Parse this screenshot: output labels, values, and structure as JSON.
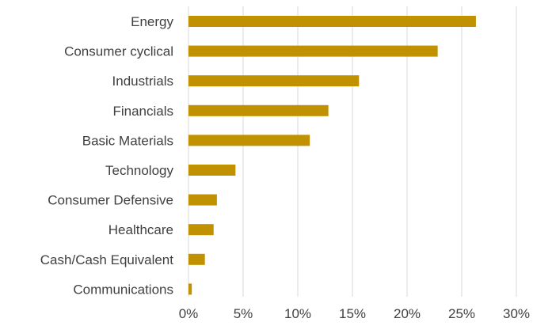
{
  "chart_data": {
    "type": "bar",
    "orientation": "horizontal",
    "categories": [
      "Energy",
      "Consumer cyclical",
      "Industrials",
      "Financials",
      "Basic Materials",
      "Technology",
      "Consumer Defensive",
      "Healthcare",
      "Cash/Cash Equivalent",
      "Communications"
    ],
    "values": [
      26.3,
      22.8,
      15.6,
      12.8,
      11.1,
      4.3,
      2.6,
      2.3,
      1.5,
      0.3
    ],
    "xlim": [
      0,
      30
    ],
    "x_ticks": [
      "0%",
      "5%",
      "10%",
      "15%",
      "20%",
      "25%",
      "30%"
    ],
    "grid": "vertical",
    "bar_color": "#c09100"
  }
}
